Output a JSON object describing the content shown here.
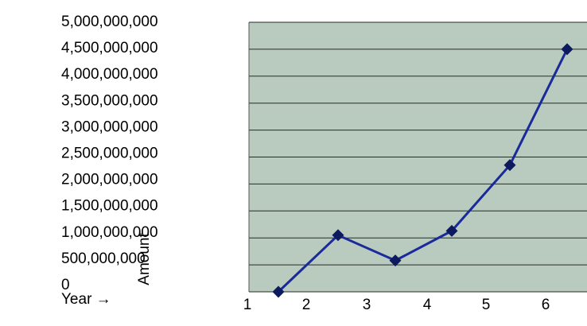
{
  "chart_data": {
    "type": "line",
    "title": "",
    "xlabel": "Year →",
    "ylabel": "Amount",
    "categories": [
      "1",
      "2",
      "3",
      "4",
      "5",
      "6"
    ],
    "y_ticks": [
      "5,000,000,000",
      "4,500,000,000",
      "4,000,000,000",
      "3,500,000,000",
      "3,000,000,000",
      "2,500,000,000",
      "2,000,000,000",
      "1,500,000,000",
      "1,000,000,000",
      "500,000,000",
      "0"
    ],
    "ylim": [
      0,
      5000000000
    ],
    "grid": true,
    "series": [
      {
        "values": [
          0,
          1050000000,
          580000000,
          1130000000,
          2350000000,
          4500000000
        ],
        "color": "#1a2a9a",
        "marker": "diamond"
      }
    ],
    "colors": {
      "plot_background": "#b9cbbf",
      "gridline": "#2a2a2a",
      "marker": "#0d1a5e"
    }
  }
}
